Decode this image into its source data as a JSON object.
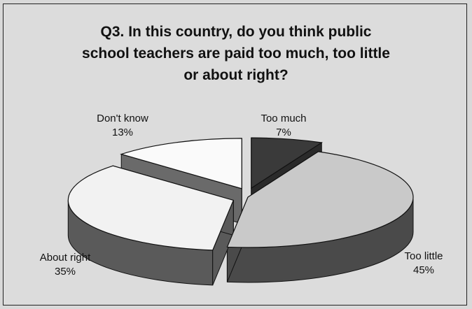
{
  "chart_data": {
    "type": "pie",
    "title": "Q3.  In this country, do you think public\nschool teachers are paid too much, too little\nor about right?",
    "slices": [
      {
        "label": "Too much",
        "value": 7,
        "value_label": "7%",
        "color": "#3a3a3a",
        "exploded": true
      },
      {
        "label": "Too little",
        "value": 45,
        "value_label": "45%",
        "color": "#c9c9c9",
        "exploded": false
      },
      {
        "label": "About right",
        "value": 35,
        "value_label": "35%",
        "color": "#f2f2f2",
        "exploded": true
      },
      {
        "label": "Don't know",
        "value": 13,
        "value_label": "13%",
        "color": "#fafafa",
        "exploded": true
      }
    ]
  }
}
